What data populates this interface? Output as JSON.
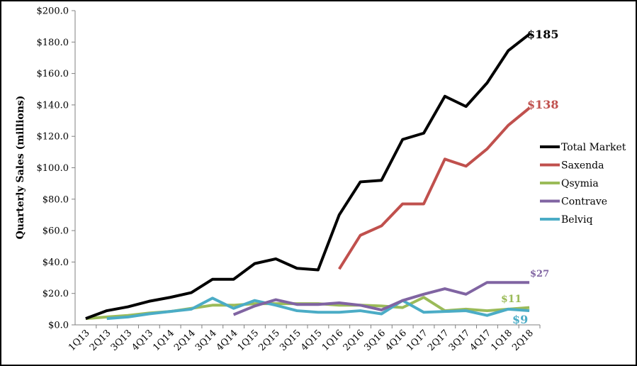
{
  "chart_data": {
    "type": "line",
    "title": "",
    "xlabel": "",
    "ylabel": "Quarterly Sales (millions)",
    "ylim": [
      0,
      200
    ],
    "yticks": [
      "$0.0",
      "$20.0",
      "$40.0",
      "$60.0",
      "$80.0",
      "$100.0",
      "$120.0",
      "$140.0",
      "$160.0",
      "$180.0",
      "$200.0"
    ],
    "grid": false,
    "legend_position": "right",
    "categories": [
      "1Q13",
      "2Q13",
      "3Q13",
      "4Q13",
      "1Q14",
      "2Q14",
      "3Q14",
      "4Q14",
      "1Q15",
      "2Q15",
      "3Q15",
      "4Q15",
      "1Q16",
      "2Q16",
      "3Q16",
      "4Q16",
      "1Q17",
      "2Q17",
      "3Q17",
      "4Q17",
      "1Q18",
      "2Q18"
    ],
    "series": [
      {
        "name": "Total Market",
        "color": "#000000",
        "values": [
          4,
          9,
          11.5,
          15,
          17.5,
          20.5,
          29,
          29,
          39,
          42,
          36,
          35,
          70,
          91,
          92,
          118,
          122,
          145.5,
          139,
          154,
          174.5,
          185
        ]
      },
      {
        "name": "Saxenda",
        "color": "#c0504d",
        "values": [
          null,
          null,
          null,
          null,
          null,
          null,
          null,
          null,
          null,
          null,
          null,
          null,
          35.5,
          57,
          63,
          77,
          77,
          105.5,
          101,
          112,
          127,
          138
        ]
      },
      {
        "name": "Qsymia",
        "color": "#9bbb59",
        "values": [
          4,
          5,
          6,
          7.5,
          8.5,
          10.5,
          12.5,
          12.5,
          13.5,
          13.5,
          13.5,
          13.5,
          12.5,
          12.5,
          12,
          11,
          17.5,
          9,
          10,
          9,
          10,
          11
        ]
      },
      {
        "name": "Contrave",
        "color": "#8064a2",
        "values": [
          null,
          null,
          null,
          null,
          null,
          null,
          null,
          6.5,
          12,
          16,
          13,
          13,
          14,
          12.5,
          9.5,
          15.5,
          19.5,
          23,
          19.5,
          27,
          27,
          27
        ]
      },
      {
        "name": "Belviq",
        "color": "#4bacc6",
        "values": [
          null,
          4,
          5,
          7,
          8.5,
          10,
          17,
          10.5,
          15.5,
          12.5,
          9,
          8,
          8,
          9,
          7,
          15.5,
          8,
          8.5,
          9,
          6,
          10,
          9
        ]
      }
    ],
    "end_labels": [
      {
        "series": "Total Market",
        "text": "$185",
        "color": "#000000"
      },
      {
        "series": "Saxenda",
        "text": "$138",
        "color": "#c0504d"
      },
      {
        "series": "Contrave",
        "text": "$27",
        "color": "#8064a2"
      },
      {
        "series": "Qsymia",
        "text": "$11",
        "color": "#9bbb59"
      },
      {
        "series": "Belviq",
        "text": "$9",
        "color": "#4bacc6"
      }
    ]
  }
}
